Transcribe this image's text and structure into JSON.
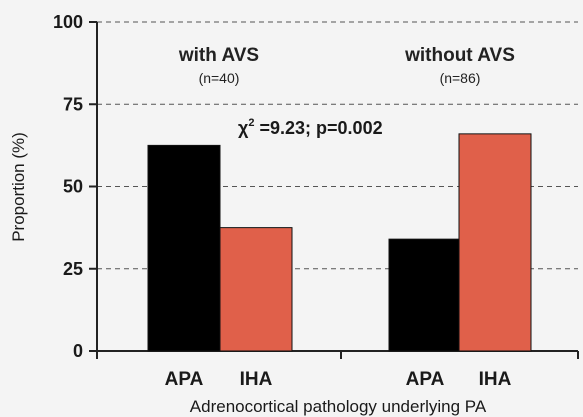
{
  "chart_data": {
    "type": "bar",
    "categories": [
      "APA",
      "IHA",
      "APA",
      "IHA"
    ],
    "groups": [
      {
        "title": "with AVS",
        "n": "(n=40)",
        "values": [
          62.5,
          37.5
        ]
      },
      {
        "title": "without AVS",
        "n": "(n=86)",
        "values": [
          34,
          66
        ]
      }
    ],
    "series_colors": [
      "#000000",
      "#e0604a"
    ],
    "ylabel": "Proportion (%)",
    "xlabel": "Adrenocortical pathology underlying PA",
    "yticks": [
      "0",
      "25",
      "50",
      "75",
      "100"
    ],
    "ylim": [
      0,
      100
    ],
    "grid": "dashed horizontal",
    "annotation": {
      "prefix": "χ",
      "sup": "2",
      "text": " =9.23; p=0.002"
    }
  }
}
